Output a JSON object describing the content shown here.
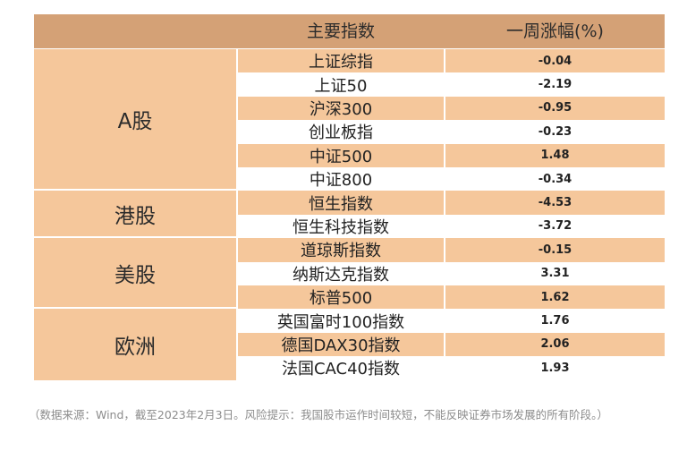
{
  "header": {
    "col_index": "主要指数",
    "col_change": "一周涨幅(%)"
  },
  "groups": [
    {
      "label": "A股",
      "rows": [
        {
          "name": "上证综指",
          "value": "-0.04"
        },
        {
          "name": "上证50",
          "value": "-2.19"
        },
        {
          "name": "沪深300",
          "value": "-0.95"
        },
        {
          "name": "创业板指",
          "value": "-0.23"
        },
        {
          "name": "中证500",
          "value": "1.48"
        },
        {
          "name": "中证800",
          "value": "-0.34"
        }
      ]
    },
    {
      "label": "港股",
      "rows": [
        {
          "name": "恒生指数",
          "value": "-4.53"
        },
        {
          "name": "恒生科技指数",
          "value": "-3.72"
        }
      ]
    },
    {
      "label": "美股",
      "rows": [
        {
          "name": "道琼斯指数",
          "value": "-0.15"
        },
        {
          "name": "纳斯达克指数",
          "value": "3.31"
        },
        {
          "name": "标普500",
          "value": "1.62"
        }
      ]
    },
    {
      "label": "欧洲",
      "rows": [
        {
          "name": "英国富时100指数",
          "value": "1.76"
        },
        {
          "name": "德国DAX30指数",
          "value": "2.06"
        },
        {
          "name": "法国CAC40指数",
          "value": "1.93"
        }
      ]
    }
  ],
  "note": "（数据来源：Wind，截至2023年2月3日。风险提示：我国股市运作时间较短，不能反映证券市场发展的所有阶段。）",
  "colors": {
    "header_bg": "#d4a176",
    "row_fill": "#f5c79b",
    "row_alt": "#ffffff"
  }
}
